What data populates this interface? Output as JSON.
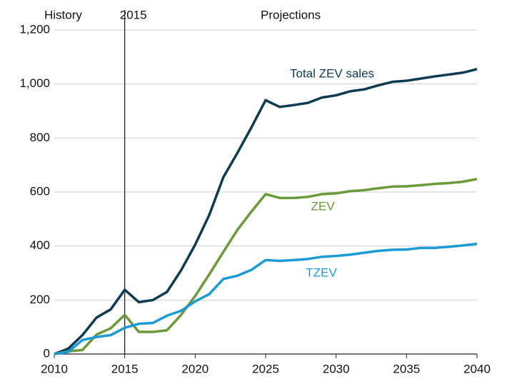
{
  "chart_data": {
    "type": "line",
    "annotations": {
      "history": "History",
      "projections": "Projections"
    },
    "vline": {
      "value": 2015,
      "label": "2015"
    },
    "x": [
      2010,
      2011,
      2012,
      2013,
      2014,
      2015,
      2016,
      2017,
      2018,
      2019,
      2020,
      2021,
      2022,
      2023,
      2024,
      2025,
      2026,
      2027,
      2028,
      2029,
      2030,
      2031,
      2032,
      2033,
      2034,
      2035,
      2036,
      2037,
      2038,
      2039,
      2040
    ],
    "series": [
      {
        "name": "Total ZEV sales",
        "color": "#0e3a52",
        "values": [
          0,
          20,
          70,
          135,
          165,
          238,
          192,
          200,
          230,
          310,
          405,
          515,
          655,
          745,
          840,
          940,
          915,
          922,
          930,
          950,
          958,
          973,
          980,
          995,
          1008,
          1012,
          1020,
          1028,
          1035,
          1042,
          1055
        ]
      },
      {
        "name": "ZEV",
        "color": "#6a9a3a",
        "values": [
          0,
          10,
          15,
          72,
          95,
          145,
          82,
          82,
          88,
          145,
          215,
          295,
          378,
          460,
          528,
          592,
          578,
          578,
          582,
          592,
          595,
          603,
          607,
          614,
          620,
          621,
          625,
          630,
          633,
          638,
          648
        ]
      },
      {
        "name": "TZEV",
        "color": "#1a9ad6",
        "values": [
          0,
          8,
          52,
          63,
          70,
          97,
          112,
          115,
          142,
          160,
          195,
          222,
          278,
          290,
          312,
          348,
          345,
          348,
          352,
          360,
          363,
          368,
          375,
          382,
          386,
          387,
          393,
          393,
          397,
          402,
          408
        ]
      }
    ],
    "xlim": [
      2010,
      2040
    ],
    "xticks": [
      2010,
      2015,
      2020,
      2025,
      2030,
      2035,
      2040
    ],
    "ylim": [
      0,
      1200
    ],
    "yticks": [
      0,
      200,
      400,
      600,
      800,
      {
        "value": 1000,
        "label": "1,000"
      },
      {
        "value": 1200,
        "label": "1,200"
      }
    ],
    "grid": true
  }
}
